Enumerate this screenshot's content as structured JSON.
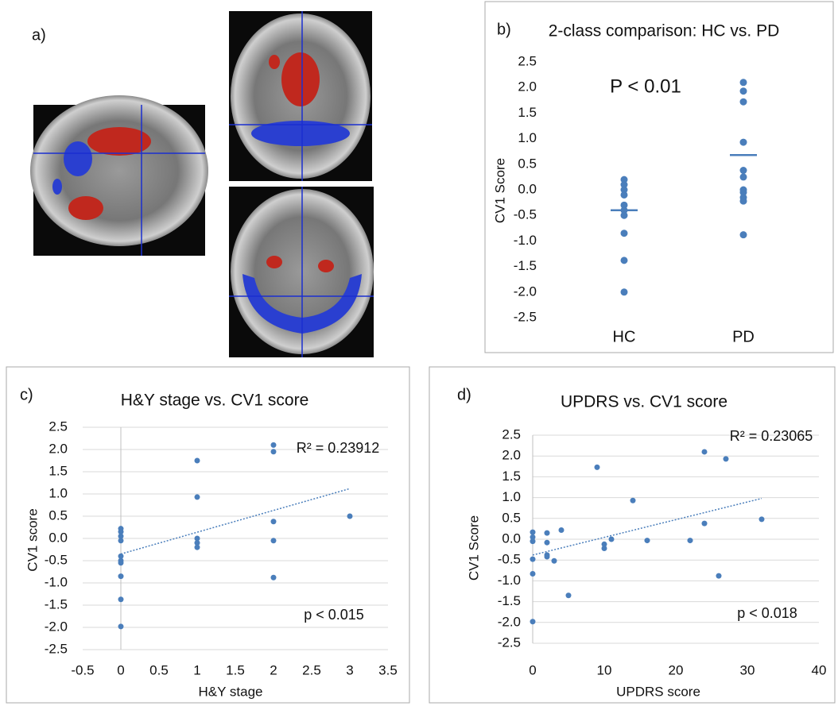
{
  "panel_label": "a)",
  "chart_data": [
    {
      "type": "strip",
      "label": "b)",
      "title": "2-class comparison:  HC vs. PD",
      "y_label": "CV1 Score",
      "categories": [
        "HC",
        "PD"
      ],
      "points": [
        [
          0.2,
          0.1,
          0.0,
          -0.1,
          -0.3,
          -0.4,
          -0.5,
          -0.85,
          -1.38,
          -2.0
        ],
        [
          2.1,
          1.93,
          1.72,
          0.93,
          0.38,
          0.25,
          0.0,
          -0.05,
          -0.15,
          -0.22,
          -0.88
        ]
      ],
      "means": [
        -0.4,
        0.68
      ],
      "color": "#4a7ebb",
      "annotations": [
        "P < 0.01"
      ],
      "ylim": [
        -2.5,
        2.5
      ],
      "yticks": [
        2.5,
        {
          "value": 2,
          "label": "2.0"
        },
        1.5,
        {
          "value": 1,
          "label": "1.0"
        },
        0.5,
        {
          "value": 0,
          "label": "0.0"
        },
        -0.5,
        {
          "value": -1,
          "label": "-1.0"
        },
        -1.5,
        {
          "value": -2,
          "label": "-2.0"
        },
        -2.5
      ],
      "grid": false
    },
    {
      "type": "scatter",
      "label": "c)",
      "title": "H&Y stage vs. CV1 score",
      "x_label": "H&Y stage",
      "y_label": "CV1 score",
      "x": [
        0,
        0,
        0,
        0,
        0,
        0,
        0,
        0,
        0,
        0,
        1,
        1,
        1,
        1,
        1,
        2,
        2,
        2,
        2,
        2,
        3
      ],
      "values": [
        0.22,
        0.15,
        0.05,
        -0.05,
        -0.4,
        -0.5,
        -0.55,
        -0.85,
        -1.37,
        -1.98,
        1.75,
        0.93,
        0.0,
        -0.1,
        -0.2,
        2.1,
        1.95,
        0.38,
        -0.05,
        -0.88,
        0.5
      ],
      "color": "#4a7ebb",
      "trendline": {
        "x": [
          0,
          3
        ],
        "y": [
          -0.35,
          1.12
        ]
      },
      "annotations": [
        "R² = 0.23912",
        "p < 0.015"
      ],
      "xlim": [
        -0.5,
        3.5
      ],
      "xticks": [
        -0.5,
        0,
        0.5,
        1,
        1.5,
        2,
        2.5,
        3,
        3.5
      ],
      "ylim": [
        -2.5,
        2.5
      ],
      "yticks": [
        2.5,
        {
          "value": 2,
          "label": "2.0"
        },
        1.5,
        {
          "value": 1,
          "label": "1.0"
        },
        0.5,
        {
          "value": 0,
          "label": "0.0"
        },
        -0.5,
        {
          "value": -1,
          "label": "-1.0"
        },
        -1.5,
        {
          "value": -2,
          "label": "-2.0"
        },
        -2.5
      ],
      "grid": true
    },
    {
      "type": "scatter",
      "label": "d)",
      "title": "UPDRS vs. CV1 score",
      "x_label": "UPDRS score",
      "y_label": "CV1 Score",
      "x": [
        0,
        0,
        0,
        0,
        0,
        0,
        2,
        2,
        2,
        2,
        3,
        4,
        5,
        9,
        10,
        10,
        11,
        14,
        16,
        22,
        24,
        24,
        26,
        27,
        32
      ],
      "values": [
        0.17,
        0.05,
        -0.05,
        -0.48,
        -0.83,
        -1.98,
        0.15,
        -0.08,
        -0.38,
        -0.42,
        -0.52,
        0.22,
        -1.35,
        1.73,
        -0.12,
        -0.22,
        0.0,
        0.93,
        -0.03,
        -0.03,
        2.1,
        0.38,
        -0.88,
        1.93,
        0.48
      ],
      "color": "#4a7ebb",
      "trendline": {
        "x": [
          0,
          32
        ],
        "y": [
          -0.38,
          0.98
        ]
      },
      "annotations": [
        "R² = 0.23065",
        "p < 0.018"
      ],
      "xlim": [
        0,
        40
      ],
      "xticks": [
        0,
        10,
        20,
        30,
        40
      ],
      "ylim": [
        -2.5,
        2.5
      ],
      "yticks": [
        2.5,
        {
          "value": 2,
          "label": "2.0"
        },
        1.5,
        {
          "value": 1,
          "label": "1.0"
        },
        0.5,
        {
          "value": 0,
          "label": "0.0"
        },
        -0.5,
        {
          "value": -1,
          "label": "-1.0"
        },
        -1.5,
        {
          "value": -2,
          "label": "-2.0"
        },
        -2.5
      ],
      "grid": true
    }
  ]
}
